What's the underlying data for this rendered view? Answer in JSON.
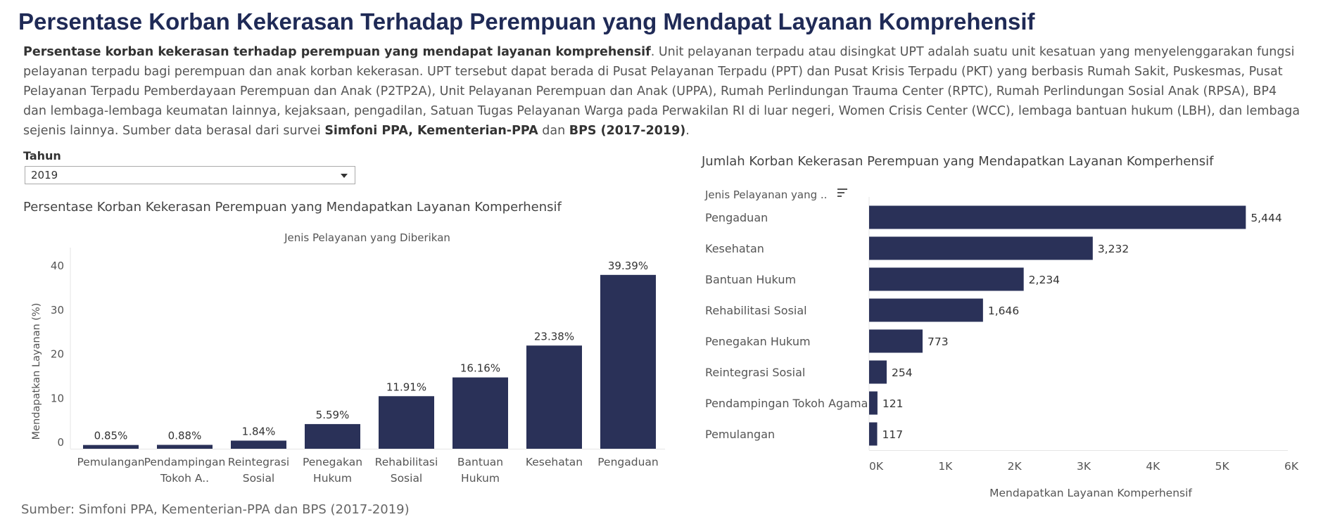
{
  "page": {
    "title": "Persentase Korban Kekerasan Terhadap Perempuan yang Mendapat Layanan Komprehensif",
    "description": {
      "bold_lead": "Persentase korban kekerasan terhadap perempuan yang mendapat layanan komprehensif",
      "body": ". Unit pelayanan terpadu atau disingkat UPT adalah suatu unit kesatuan yang menyelenggarakan fungsi pelayanan terpadu bagi perempuan dan anak korban kekerasan. UPT tersebut dapat berada di Pusat Pelayanan Terpadu (PPT) dan Pusat Krisis Terpadu (PKT) yang berbasis Rumah Sakit, Puskesmas, Pusat Pelayanan Terpadu Pemberdayaan Perempuan dan Anak (P2TP2A), Unit Pelayanan Perempuan dan Anak (UPPA), Rumah Perlindungan Trauma Center (RPTC), Rumah Perlindungan Sosial Anak (RPSA), BP4 dan lembaga-lembaga keumatan lainnya, kejaksaan, pengadilan, Satuan Tugas Pelayanan Warga pada Perwakilan RI di luar negeri, Women Crisis Center (WCC), lembaga bantuan hukum (LBH), dan lembaga sejenis lainnya. Sumber data berasal dari survei ",
      "bold_source": "Simfoni PPA, Kementerian-PPA",
      "and": " dan ",
      "bold_bps": "BPS (2017-2019)",
      "end": "."
    },
    "filter": {
      "label": "Tahun",
      "value": "2019"
    },
    "source": "Sumber:  Simfoni PPA, Kementerian-PPA dan BPS (2017-2019)",
    "bar_color": "#2a3158"
  },
  "chart_data": [
    {
      "type": "bar",
      "orientation": "vertical",
      "title": "Persentase Korban Kekerasan Perempuan yang Mendapatkan Layanan Komperhensif",
      "header": "Jenis Pelayanan yang Diberikan",
      "ylabel": "Mendapatkan Layanan (%)",
      "ylim": [
        0,
        40
      ],
      "yticks": [
        0,
        10,
        20,
        30,
        40
      ],
      "categories": [
        [
          "Pemulangan"
        ],
        [
          "Pendampingan",
          "Tokoh A.."
        ],
        [
          "Reintegrasi",
          "Sosial"
        ],
        [
          "Penegakan",
          "Hukum"
        ],
        [
          "Rehabilitasi",
          "Sosial"
        ],
        [
          "Bantuan",
          "Hukum"
        ],
        [
          "Kesehatan"
        ],
        [
          "Pengaduan"
        ]
      ],
      "values": [
        0.85,
        0.88,
        1.84,
        5.59,
        11.91,
        16.16,
        23.38,
        39.39
      ],
      "data_labels": [
        "0.85%",
        "0.88%",
        "1.84%",
        "5.59%",
        "11.91%",
        "16.16%",
        "23.38%",
        "39.39%"
      ],
      "grid": false
    },
    {
      "type": "bar",
      "orientation": "horizontal",
      "title": "Jumlah Korban Kekerasan Perempuan yang Mendapatkan Layanan Komperhensif",
      "header": "Jenis Pelayanan yang ..",
      "xlabel": "Mendapatkan Layanan Komperhensif",
      "xlim": [
        0,
        6000
      ],
      "xticks": [
        "0K",
        "1K",
        "2K",
        "3K",
        "4K",
        "5K",
        "6K"
      ],
      "categories": [
        "Pengaduan",
        "Kesehatan",
        "Bantuan Hukum",
        "Rehabilitasi Sosial",
        "Penegakan Hukum",
        "Reintegrasi Sosial",
        "Pendampingan Tokoh Agama",
        "Pemulangan"
      ],
      "values": [
        5444,
        3232,
        2234,
        1646,
        773,
        254,
        121,
        117
      ],
      "data_labels": [
        "5,444",
        "3,232",
        "2,234",
        "1,646",
        "773",
        "254",
        "121",
        "117"
      ],
      "grid": false
    }
  ]
}
